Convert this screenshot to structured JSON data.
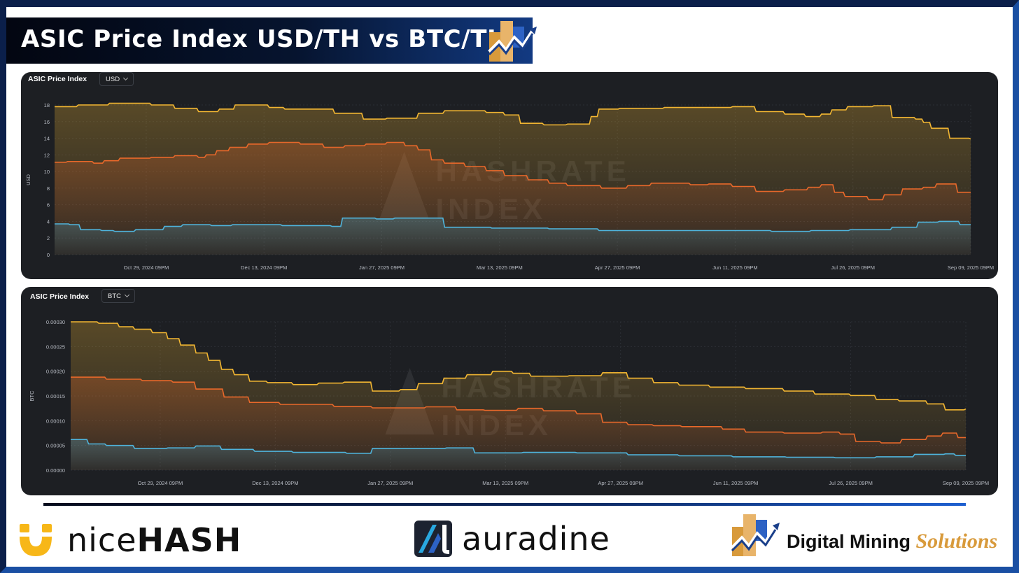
{
  "header": {
    "title": "ASIC Price Index USD/TH vs BTC/TH"
  },
  "footer": {
    "nicehash_prefix": "nice",
    "nicehash_suffix": "HASH",
    "auradine": "auradine",
    "dms_main": "Digital Mining ",
    "dms_accent": "Solutions"
  },
  "watermark": [
    "HASHRATE",
    "INDEX"
  ],
  "colors": {
    "high": "#f2b632",
    "mid": "#e8682a",
    "low": "#4fb4dc",
    "panel_bg": "#1d1f23",
    "banner": "#06142f",
    "accent_blue": "#1a4fa3",
    "dms_gold": "#d89a3b",
    "nicehash_yellow": "#f7b718"
  },
  "chart_data": [
    {
      "type": "area",
      "panel_title": "ASIC Price Index",
      "unit_selector": "USD",
      "ylabel": "USD",
      "ylim": [
        0,
        18
      ],
      "yticks": [
        "0",
        "2",
        "4",
        "6",
        "8",
        "10",
        "12",
        "14",
        "16",
        "18"
      ],
      "xlim": [
        "2024-09-24",
        "2025-09-09"
      ],
      "xticks": [
        {
          "date": "2024-10-29",
          "label": "Oct 29, 2024 09PM"
        },
        {
          "date": "2024-12-13",
          "label": "Dec 13, 2024 09PM"
        },
        {
          "date": "2025-01-27",
          "label": "Jan 27, 2025 09PM"
        },
        {
          "date": "2025-03-13",
          "label": "Mar 13, 2025 09PM"
        },
        {
          "date": "2025-04-27",
          "label": "Apr 27, 2025 09PM"
        },
        {
          "date": "2025-06-11",
          "label": "Jun 11, 2025 09PM"
        },
        {
          "date": "2025-07-26",
          "label": "Jul 26, 2025 09PM"
        },
        {
          "date": "2025-09-09",
          "label": "Sep 09, 2025 09PM"
        }
      ],
      "series": [
        {
          "color": "#f2b632",
          "points": [
            [
              "2024-09-24",
              17.8
            ],
            [
              "2024-10-03",
              18.0
            ],
            [
              "2024-10-15",
              18.2
            ],
            [
              "2024-10-31",
              18.0
            ],
            [
              "2024-11-09",
              17.6
            ],
            [
              "2024-11-18",
              17.2
            ],
            [
              "2024-11-26",
              17.5
            ],
            [
              "2024-12-02",
              18.0
            ],
            [
              "2024-12-15",
              17.7
            ],
            [
              "2024-12-21",
              17.5
            ],
            [
              "2025-01-05",
              17.5
            ],
            [
              "2025-01-09",
              17.0
            ],
            [
              "2025-01-20",
              16.3
            ],
            [
              "2025-01-29",
              16.4
            ],
            [
              "2025-02-10",
              17.0
            ],
            [
              "2025-02-20",
              17.3
            ],
            [
              "2025-03-08",
              17.1
            ],
            [
              "2025-03-15",
              16.8
            ],
            [
              "2025-03-21",
              15.8
            ],
            [
              "2025-03-30",
              15.6
            ],
            [
              "2025-04-08",
              15.7
            ],
            [
              "2025-04-17",
              16.6
            ],
            [
              "2025-04-20",
              17.5
            ],
            [
              "2025-04-28",
              17.6
            ],
            [
              "2025-05-15",
              17.7
            ],
            [
              "2025-06-10",
              17.8
            ],
            [
              "2025-06-19",
              17.2
            ],
            [
              "2025-06-30",
              16.9
            ],
            [
              "2025-07-08",
              16.6
            ],
            [
              "2025-07-14",
              16.9
            ],
            [
              "2025-07-18",
              17.4
            ],
            [
              "2025-07-24",
              17.8
            ],
            [
              "2025-08-03",
              17.9
            ],
            [
              "2025-08-10",
              16.5
            ],
            [
              "2025-08-19",
              16.3
            ],
            [
              "2025-08-22",
              15.9
            ],
            [
              "2025-08-25",
              15.2
            ],
            [
              "2025-09-01",
              14.0
            ],
            [
              "2025-09-09",
              13.9
            ]
          ]
        },
        {
          "color": "#e8682a",
          "points": [
            [
              "2024-09-24",
              11.1
            ],
            [
              "2024-09-29",
              11.2
            ],
            [
              "2024-10-09",
              11.0
            ],
            [
              "2024-10-13",
              11.3
            ],
            [
              "2024-10-19",
              11.6
            ],
            [
              "2024-10-31",
              11.7
            ],
            [
              "2024-11-09",
              11.9
            ],
            [
              "2024-11-18",
              11.7
            ],
            [
              "2024-11-21",
              12.0
            ],
            [
              "2024-11-25",
              12.5
            ],
            [
              "2024-11-30",
              12.9
            ],
            [
              "2024-12-07",
              13.3
            ],
            [
              "2024-12-15",
              13.5
            ],
            [
              "2024-12-27",
              13.3
            ],
            [
              "2025-01-05",
              12.9
            ],
            [
              "2025-01-13",
              13.1
            ],
            [
              "2025-01-21",
              13.3
            ],
            [
              "2025-01-29",
              13.5
            ],
            [
              "2025-02-05",
              13.1
            ],
            [
              "2025-02-10",
              12.6
            ],
            [
              "2025-02-15",
              11.4
            ],
            [
              "2025-02-20",
              11.0
            ],
            [
              "2025-02-28",
              10.6
            ],
            [
              "2025-03-08",
              10.1
            ],
            [
              "2025-03-15",
              9.5
            ],
            [
              "2025-03-24",
              9.0
            ],
            [
              "2025-04-01",
              8.6
            ],
            [
              "2025-04-08",
              8.3
            ],
            [
              "2025-04-14",
              8.3
            ],
            [
              "2025-04-21",
              8.0
            ],
            [
              "2025-05-01",
              8.3
            ],
            [
              "2025-05-10",
              8.6
            ],
            [
              "2025-05-25",
              8.4
            ],
            [
              "2025-06-01",
              8.5
            ],
            [
              "2025-06-10",
              8.2
            ],
            [
              "2025-06-19",
              7.6
            ],
            [
              "2025-06-30",
              7.8
            ],
            [
              "2025-07-09",
              8.1
            ],
            [
              "2025-07-14",
              8.4
            ],
            [
              "2025-07-19",
              7.5
            ],
            [
              "2025-07-23",
              7.0
            ],
            [
              "2025-08-01",
              6.6
            ],
            [
              "2025-08-07",
              7.2
            ],
            [
              "2025-08-14",
              7.9
            ],
            [
              "2025-08-22",
              8.1
            ],
            [
              "2025-08-27",
              8.5
            ],
            [
              "2025-09-04",
              7.5
            ],
            [
              "2025-09-09",
              7.5
            ]
          ]
        },
        {
          "color": "#4fb4dc",
          "points": [
            [
              "2024-09-24",
              3.7
            ],
            [
              "2024-09-30",
              3.6
            ],
            [
              "2024-10-04",
              3.0
            ],
            [
              "2024-10-12",
              2.9
            ],
            [
              "2024-10-17",
              2.8
            ],
            [
              "2024-10-25",
              3.0
            ],
            [
              "2024-11-05",
              3.4
            ],
            [
              "2024-11-12",
              3.6
            ],
            [
              "2024-11-23",
              3.5
            ],
            [
              "2024-12-01",
              3.6
            ],
            [
              "2024-12-20",
              3.5
            ],
            [
              "2025-01-08",
              3.4
            ],
            [
              "2025-01-12",
              4.4
            ],
            [
              "2025-01-25",
              4.3
            ],
            [
              "2025-02-01",
              4.4
            ],
            [
              "2025-02-17",
              4.4
            ],
            [
              "2025-02-20",
              3.3
            ],
            [
              "2025-03-10",
              3.2
            ],
            [
              "2025-04-01",
              3.1
            ],
            [
              "2025-04-20",
              2.9
            ],
            [
              "2025-05-15",
              2.9
            ],
            [
              "2025-06-10",
              2.9
            ],
            [
              "2025-06-25",
              2.8
            ],
            [
              "2025-07-10",
              2.9
            ],
            [
              "2025-07-25",
              3.0
            ],
            [
              "2025-08-10",
              3.3
            ],
            [
              "2025-08-20",
              3.9
            ],
            [
              "2025-08-28",
              4.0
            ],
            [
              "2025-09-05",
              3.6
            ],
            [
              "2025-09-09",
              3.6
            ]
          ]
        }
      ]
    },
    {
      "type": "area",
      "panel_title": "ASIC Price Index",
      "unit_selector": "BTC",
      "ylabel": "BTC",
      "ylim": [
        0,
        0.0003
      ],
      "yticks": [
        "0.00000",
        "0.00005",
        "0.00010",
        "0.00015",
        "0.00020",
        "0.00025",
        "0.00030"
      ],
      "xlim": [
        "2024-09-24",
        "2025-09-09"
      ],
      "xticks": [
        {
          "date": "2024-10-29",
          "label": "Oct 29, 2024 09PM"
        },
        {
          "date": "2024-12-13",
          "label": "Dec 13, 2024 09PM"
        },
        {
          "date": "2025-01-27",
          "label": "Jan 27, 2025 09PM"
        },
        {
          "date": "2025-03-13",
          "label": "Mar 13, 2025 09PM"
        },
        {
          "date": "2025-04-27",
          "label": "Apr 27, 2025 09PM"
        },
        {
          "date": "2025-06-11",
          "label": "Jun 11, 2025 09PM"
        },
        {
          "date": "2025-07-26",
          "label": "Jul 26, 2025 09PM"
        },
        {
          "date": "2025-09-09",
          "label": "Sep 09, 2025 09PM"
        }
      ],
      "series": [
        {
          "color": "#f2b632",
          "points": [
            [
              "2024-09-24",
              0.0003
            ],
            [
              "2024-10-05",
              0.000297
            ],
            [
              "2024-10-13",
              0.00029
            ],
            [
              "2024-10-19",
              0.000285
            ],
            [
              "2024-10-26",
              0.000278
            ],
            [
              "2024-11-01",
              0.000266
            ],
            [
              "2024-11-06",
              0.000253
            ],
            [
              "2024-11-12",
              0.000237
            ],
            [
              "2024-11-17",
              0.000222
            ],
            [
              "2024-11-22",
              0.000204
            ],
            [
              "2024-11-27",
              0.000193
            ],
            [
              "2024-12-03",
              0.00018
            ],
            [
              "2024-12-10",
              0.000177
            ],
            [
              "2024-12-20",
              0.000173
            ],
            [
              "2024-12-30",
              0.000176
            ],
            [
              "2025-01-09",
              0.000178
            ],
            [
              "2025-01-20",
              0.00016
            ],
            [
              "2025-01-31",
              0.000163
            ],
            [
              "2025-02-07",
              0.000175
            ],
            [
              "2025-02-17",
              0.000186
            ],
            [
              "2025-02-26",
              0.000193
            ],
            [
              "2025-03-08",
              0.0002
            ],
            [
              "2025-03-16",
              0.000196
            ],
            [
              "2025-03-23",
              0.00019
            ],
            [
              "2025-04-07",
              0.000191
            ],
            [
              "2025-04-20",
              0.000197
            ],
            [
              "2025-04-30",
              0.000186
            ],
            [
              "2025-05-10",
              0.000177
            ],
            [
              "2025-05-20",
              0.000172
            ],
            [
              "2025-06-01",
              0.000168
            ],
            [
              "2025-06-15",
              0.000165
            ],
            [
              "2025-06-30",
              0.00016
            ],
            [
              "2025-07-12",
              0.000154
            ],
            [
              "2025-07-26",
              0.000151
            ],
            [
              "2025-08-05",
              0.000143
            ],
            [
              "2025-08-14",
              0.00014
            ],
            [
              "2025-08-25",
              0.000134
            ],
            [
              "2025-09-01",
              0.000122
            ],
            [
              "2025-09-09",
              0.000124
            ]
          ]
        },
        {
          "color": "#e8682a",
          "points": [
            [
              "2024-09-24",
              0.000188
            ],
            [
              "2024-10-08",
              0.000184
            ],
            [
              "2024-10-22",
              0.000181
            ],
            [
              "2024-11-03",
              0.000178
            ],
            [
              "2024-11-12",
              0.000164
            ],
            [
              "2024-11-23",
              0.000148
            ],
            [
              "2024-12-03",
              0.000137
            ],
            [
              "2024-12-15",
              0.000133
            ],
            [
              "2025-01-05",
              0.000129
            ],
            [
              "2025-01-20",
              0.000126
            ],
            [
              "2025-02-10",
              0.000128
            ],
            [
              "2025-02-22",
              0.000122
            ],
            [
              "2025-03-05",
              0.000121
            ],
            [
              "2025-03-18",
              0.000125
            ],
            [
              "2025-03-28",
              0.00012
            ],
            [
              "2025-04-10",
              0.000114
            ],
            [
              "2025-04-20",
              9.7e-05
            ],
            [
              "2025-04-30",
              9.2e-05
            ],
            [
              "2025-05-10",
              9e-05
            ],
            [
              "2025-05-21",
              8.8e-05
            ],
            [
              "2025-06-06",
              8.3e-05
            ],
            [
              "2025-06-15",
              7.7e-05
            ],
            [
              "2025-06-30",
              7.5e-05
            ],
            [
              "2025-07-15",
              7.7e-05
            ],
            [
              "2025-07-22",
              7.3e-05
            ],
            [
              "2025-07-28",
              5.8e-05
            ],
            [
              "2025-08-07",
              5.5e-05
            ],
            [
              "2025-08-15",
              6.2e-05
            ],
            [
              "2025-08-25",
              6.9e-05
            ],
            [
              "2025-08-31",
              7.5e-05
            ],
            [
              "2025-09-06",
              6.6e-05
            ],
            [
              "2025-09-09",
              6.6e-05
            ]
          ]
        },
        {
          "color": "#4fb4dc",
          "points": [
            [
              "2024-09-24",
              6.2e-05
            ],
            [
              "2024-10-01",
              5.3e-05
            ],
            [
              "2024-10-08",
              5e-05
            ],
            [
              "2024-10-19",
              4.4e-05
            ],
            [
              "2024-11-01",
              4.5e-05
            ],
            [
              "2024-11-12",
              4.9e-05
            ],
            [
              "2024-11-22",
              4.2e-05
            ],
            [
              "2024-12-05",
              3.8e-05
            ],
            [
              "2024-12-20",
              3.6e-05
            ],
            [
              "2025-01-10",
              3.4e-05
            ],
            [
              "2025-01-20",
              4.4e-05
            ],
            [
              "2025-02-18",
              4.5e-05
            ],
            [
              "2025-03-01",
              3.5e-05
            ],
            [
              "2025-03-20",
              3.6e-05
            ],
            [
              "2025-04-10",
              3.5e-05
            ],
            [
              "2025-04-30",
              3.1e-05
            ],
            [
              "2025-05-20",
              2.9e-05
            ],
            [
              "2025-06-10",
              2.7e-05
            ],
            [
              "2025-07-01",
              2.6e-05
            ],
            [
              "2025-07-20",
              2.5e-05
            ],
            [
              "2025-08-05",
              2.7e-05
            ],
            [
              "2025-08-20",
              3.2e-05
            ],
            [
              "2025-09-01",
              3.3e-05
            ],
            [
              "2025-09-05",
              3e-05
            ],
            [
              "2025-09-09",
              3e-05
            ]
          ]
        }
      ]
    }
  ]
}
